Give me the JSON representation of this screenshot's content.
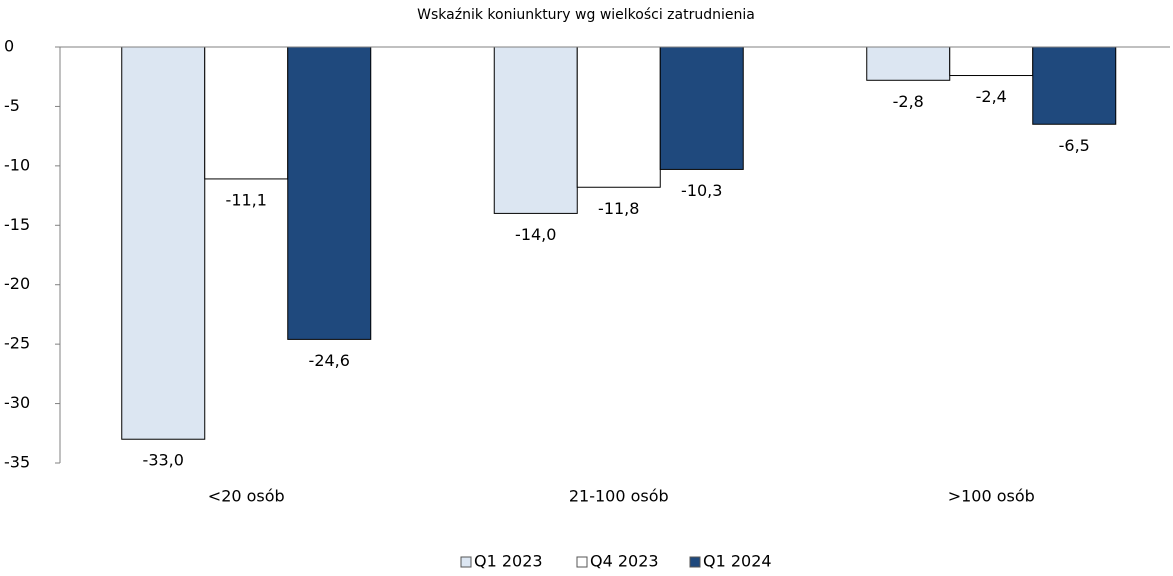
{
  "chart_data": {
    "type": "bar",
    "title": "Wskaźnik koniunktury wg wielkości zatrudnienia",
    "categories": [
      "<20 osób",
      "21-100 osób",
      ">100 osób"
    ],
    "series": [
      {
        "name": "Q1 2023",
        "color": "#dce6f2",
        "values": [
          -33.0,
          -14.0,
          -2.8
        ],
        "value_labels": [
          "-33,0",
          "-14,0",
          "-2,8"
        ]
      },
      {
        "name": "Q4 2023",
        "color": "#ffffff",
        "values": [
          -11.1,
          -11.8,
          -2.4
        ],
        "value_labels": [
          "-11,1",
          "-11,8",
          "-2,4"
        ]
      },
      {
        "name": "Q1 2024",
        "color": "#1f497d",
        "values": [
          -24.6,
          -10.3,
          -6.5
        ],
        "value_labels": [
          "-24,6",
          "-10,3",
          "-6,5"
        ]
      }
    ],
    "ylim": [
      -35,
      0
    ],
    "yticks": [
      0,
      -5,
      -10,
      -15,
      -20,
      -25,
      -30,
      -35
    ],
    "grid": false,
    "legend": "bottom"
  }
}
